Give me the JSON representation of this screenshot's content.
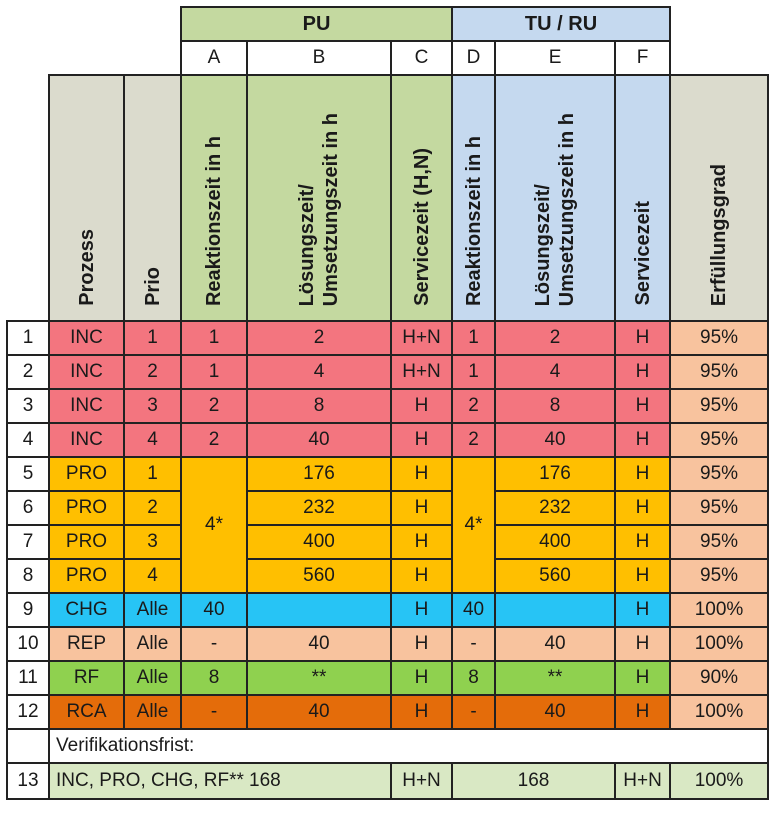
{
  "groups": {
    "pu": "PU",
    "tu": "TU / RU"
  },
  "letters": [
    "A",
    "B",
    "C",
    "D",
    "E",
    "F"
  ],
  "headers": {
    "prozess": "Prozess",
    "prio": "Prio",
    "reaktion_pu": "Reaktionszeit in h",
    "loesung_pu": "Lösungszeit/\nUmsetzungszeit in h",
    "service_pu": "Servicezeit (H,N)",
    "reaktion_tu": "Reaktionszeit in h",
    "loesung_tu": "Lösungszeit/\nUmsetzungszeit in h",
    "service_tu": "Servicezeit",
    "erfuellung": "Erfüllungsgrad"
  },
  "rows": [
    {
      "n": "1",
      "proc": "INC",
      "prio": "1",
      "a": "1",
      "b": "2",
      "c": "H+N",
      "d": "1",
      "e": "2",
      "f": "H",
      "g": "95%"
    },
    {
      "n": "2",
      "proc": "INC",
      "prio": "2",
      "a": "1",
      "b": "4",
      "c": "H+N",
      "d": "1",
      "e": "4",
      "f": "H",
      "g": "95%"
    },
    {
      "n": "3",
      "proc": "INC",
      "prio": "3",
      "a": "2",
      "b": "8",
      "c": "H",
      "d": "2",
      "e": "8",
      "f": "H",
      "g": "95%"
    },
    {
      "n": "4",
      "proc": "INC",
      "prio": "4",
      "a": "2",
      "b": "40",
      "c": "H",
      "d": "2",
      "e": "40",
      "f": "H",
      "g": "95%"
    },
    {
      "n": "5",
      "proc": "PRO",
      "prio": "1",
      "a": "4*",
      "b": "176",
      "c": "H",
      "d": "4*",
      "e": "176",
      "f": "H",
      "g": "95%"
    },
    {
      "n": "6",
      "proc": "PRO",
      "prio": "2",
      "b": "232",
      "c": "H",
      "e": "232",
      "f": "H",
      "g": "95%"
    },
    {
      "n": "7",
      "proc": "PRO",
      "prio": "3",
      "b": "400",
      "c": "H",
      "e": "400",
      "f": "H",
      "g": "95%"
    },
    {
      "n": "8",
      "proc": "PRO",
      "prio": "4",
      "b": "560",
      "c": "H",
      "e": "560",
      "f": "H",
      "g": "95%"
    },
    {
      "n": "9",
      "proc": "CHG",
      "prio": "Alle",
      "a": "40",
      "b": "",
      "c": "H",
      "d": "40",
      "e": "",
      "f": "H",
      "g": "100%"
    },
    {
      "n": "10",
      "proc": "REP",
      "prio": "Alle",
      "a": "-",
      "b": "40",
      "c": "H",
      "d": "-",
      "e": "40",
      "f": "H",
      "g": "100%"
    },
    {
      "n": "11",
      "proc": "RF",
      "prio": "Alle",
      "a": "8",
      "b": "**",
      "c": "H",
      "d": "8",
      "e": "**",
      "f": "H",
      "g": "90%"
    },
    {
      "n": "12",
      "proc": "RCA",
      "prio": "Alle",
      "a": "-",
      "b": "40",
      "c": "H",
      "d": "-",
      "e": "40",
      "f": "H",
      "g": "100%"
    }
  ],
  "verification": {
    "label": "Verifikationsfrist:",
    "n": "13",
    "desc": "INC, PRO, CHG, RF**",
    "pu_value": "168",
    "pu_service": "H+N",
    "tu_value": "168",
    "tu_service": "H+N",
    "g": "100%"
  },
  "colors": {
    "pu_green": "#c4d9a0",
    "tu_blue": "#c5d9ef",
    "header_gray": "#dbdbcd",
    "inc": "#f3757f",
    "pro": "#ffbf00",
    "chg": "#27c4f5",
    "rep": "#f8c39e",
    "rf": "#8fd14f",
    "rca": "#e46c0a",
    "erfuellung": "#f8c39e",
    "row13": "#d9e8c4"
  }
}
